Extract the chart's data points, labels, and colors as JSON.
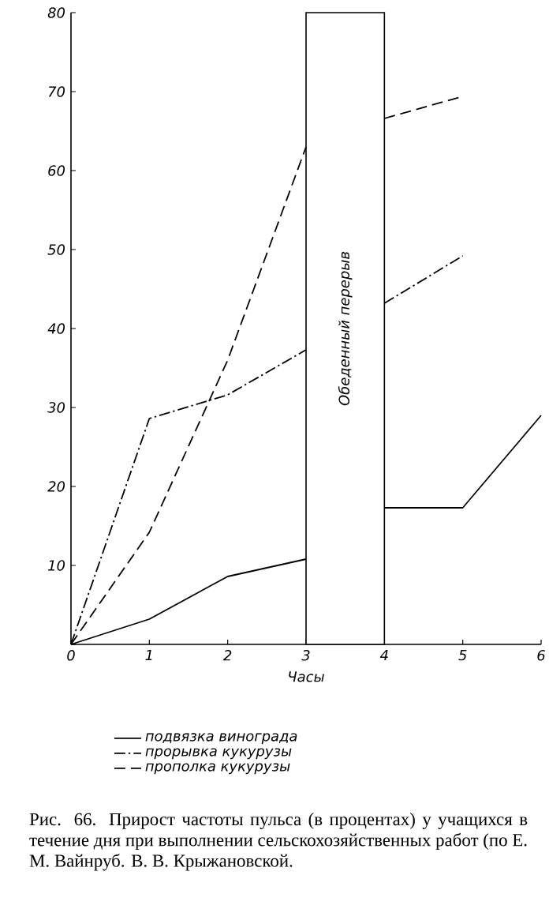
{
  "chart_data": {
    "type": "line",
    "xlabel": "Часы",
    "xlim": [
      0,
      6
    ],
    "xticks": [
      0,
      1,
      2,
      3,
      4,
      5,
      6
    ],
    "ylim": [
      0,
      80
    ],
    "yticks": [
      {
        "value": 0,
        "label": null
      },
      10,
      20,
      30,
      40,
      50,
      60,
      70,
      80
    ],
    "legend": "bottom",
    "series": [
      {
        "name": "подвязка винограда",
        "color": "#000000",
        "line_style": "solid",
        "x": [
          0,
          1,
          2,
          3,
          3.5,
          4,
          5,
          6
        ],
        "values": [
          0,
          3.2,
          8.6,
          10.8,
          null,
          17.3,
          17.3,
          29
        ]
      },
      {
        "name": "прорывка кукурузы",
        "color": "#000000",
        "line_style": "dashdot",
        "x": [
          0,
          1,
          2,
          3,
          3.5,
          4,
          5
        ],
        "values": [
          0,
          28.6,
          31.6,
          37.3,
          null,
          43.2,
          49.2
        ]
      },
      {
        "name": "прополка кукурузы",
        "color": "#000000",
        "line_style": "dashed",
        "x": [
          0,
          1,
          2,
          3,
          3.5,
          4,
          5
        ],
        "values": [
          0,
          14.2,
          36,
          63,
          null,
          66.6,
          69.4
        ]
      }
    ],
    "bands": [
      {
        "axis": "x",
        "from": 3,
        "to": 4,
        "label": "Обеденный перерыв",
        "color": "#ffffff"
      }
    ],
    "annotations": [
      "Рис. 66. Прирост частоты пульса (в процентах) у учащихся в течение дня при выполнении сельскохозяйственных работ (по Е. М. Вайнруб. В. В. Крыжановской."
    ]
  }
}
